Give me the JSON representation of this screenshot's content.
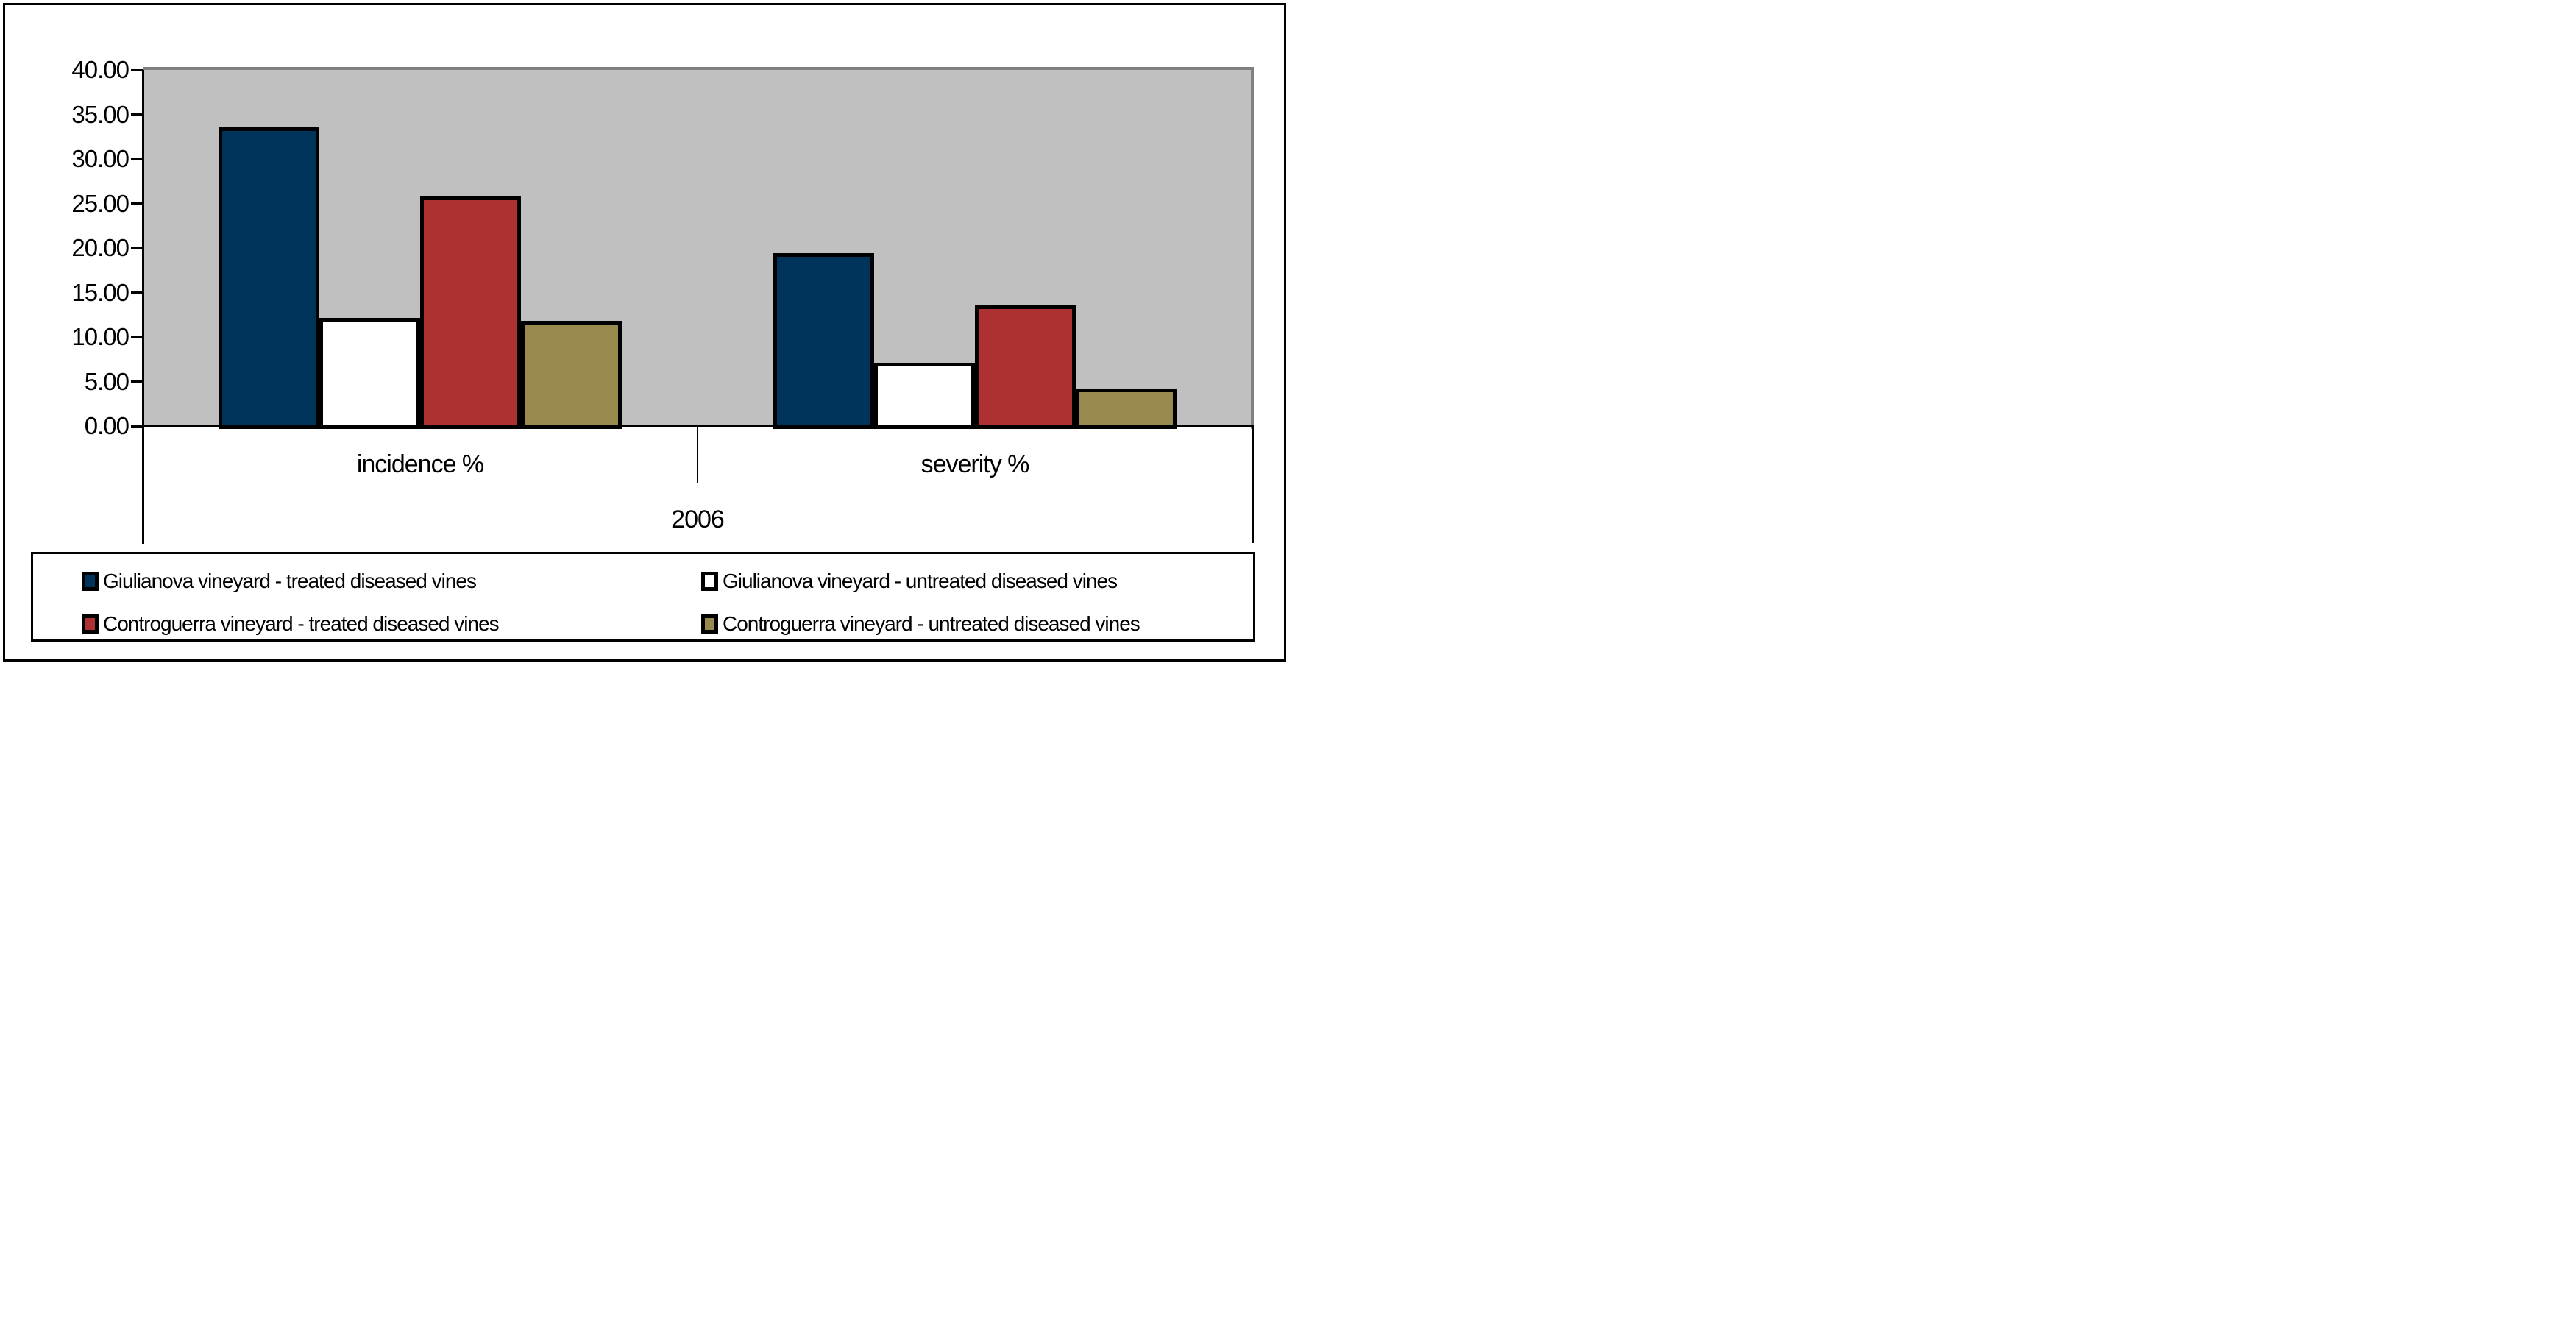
{
  "chart_data": {
    "type": "bar",
    "title": "",
    "categories": [
      "incidence %",
      "severity %"
    ],
    "x_group_label": "2006",
    "series": [
      {
        "name": "Giulianova vineyard - treated diseased vines",
        "color": "#00335A",
        "values": [
          33.5,
          19.3
        ]
      },
      {
        "name": "Giulianova vineyard - untreated diseased vines",
        "color": "#FFFFFF",
        "values": [
          12.1,
          7.0
        ]
      },
      {
        "name": "Controguerra vineyard - treated diseased vines",
        "color": "#AE3131",
        "values": [
          25.7,
          13.5
        ]
      },
      {
        "name": "Controguerra vineyard - untreated diseased vines",
        "color": "#98894F",
        "values": [
          11.7,
          4.1
        ]
      }
    ],
    "ylim": [
      0,
      40
    ],
    "ytick_step": 5,
    "ytick_labels": [
      "40.00",
      "35.00",
      "30.00",
      "25.00",
      "20.00",
      "15.00",
      "10.00",
      "5.00",
      "0.00"
    ],
    "xlabel": "",
    "ylabel": "",
    "grid": false,
    "legend_position": "bottom",
    "plot_background_color": "#C0C0C0",
    "plot_border_color": "#808080",
    "axis_color": "#000000"
  }
}
